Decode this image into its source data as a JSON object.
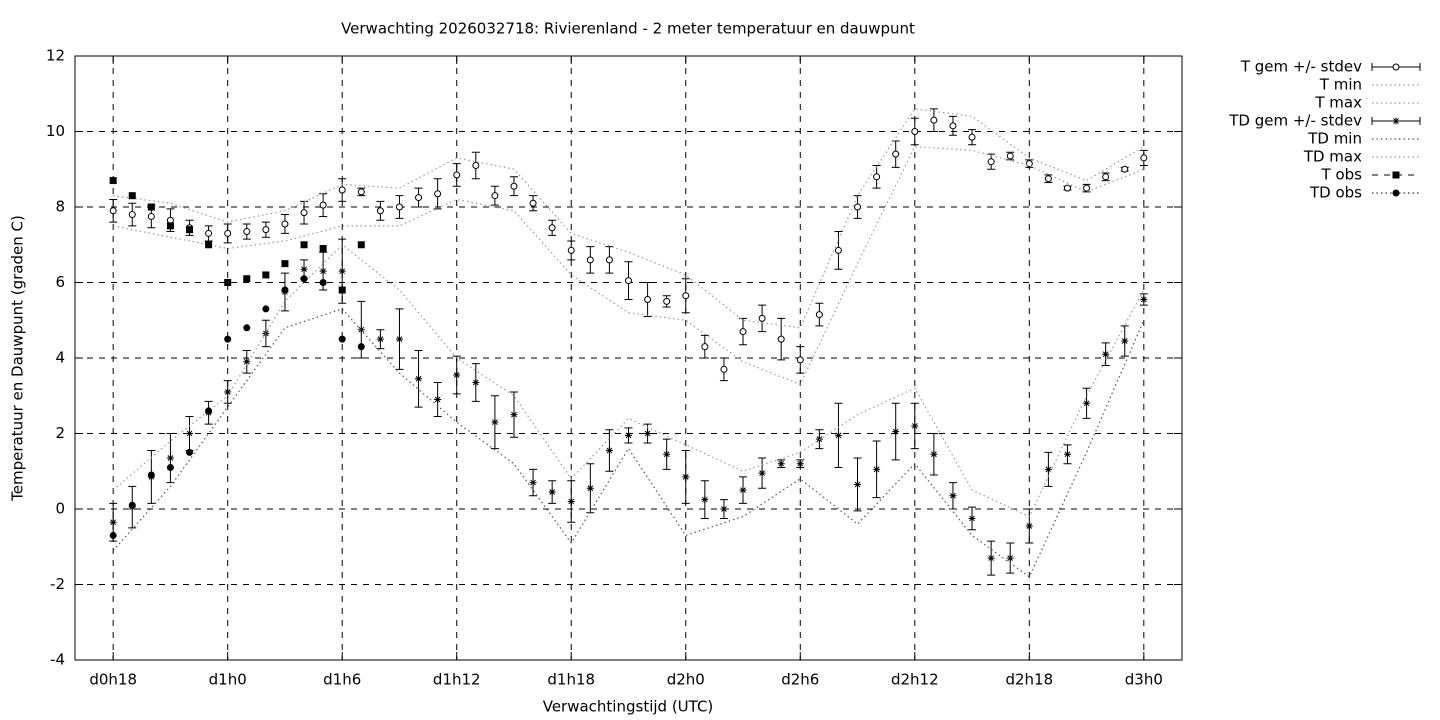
{
  "chart_data": {
    "type": "line",
    "title": "Verwachting 2026032718: Rivierenland - 2 meter temperatuur en dauwpunt",
    "xlabel": "Verwachtingstijd (UTC)",
    "ylabel": "Temperatuur en Dauwpunt (graden C)",
    "xlim": [
      16,
      74
    ],
    "ylim": [
      -4,
      12
    ],
    "xticks": [
      {
        "value": 18,
        "label": "d0h18"
      },
      {
        "value": 24,
        "label": "d1h0"
      },
      {
        "value": 30,
        "label": "d1h6"
      },
      {
        "value": 36,
        "label": "d1h12"
      },
      {
        "value": 42,
        "label": "d1h18"
      },
      {
        "value": 48,
        "label": "d2h0"
      },
      {
        "value": 54,
        "label": "d2h6"
      },
      {
        "value": 60,
        "label": "d2h12"
      },
      {
        "value": 66,
        "label": "d2h18"
      },
      {
        "value": 72,
        "label": "d3h0"
      }
    ],
    "yticks": [
      -4,
      -2,
      0,
      2,
      4,
      6,
      8,
      10,
      12
    ],
    "grid": true,
    "legend": "outside-right",
    "series": [
      {
        "name": "T gem +/- stdev",
        "style": "errorbars",
        "marker": "circle",
        "color": "#000000",
        "x": [
          18,
          19,
          20,
          21,
          22,
          23,
          24,
          25,
          26,
          27,
          28,
          29,
          30,
          31,
          32,
          33,
          34,
          35,
          36,
          37,
          38,
          39,
          40,
          41,
          42,
          43,
          44,
          45,
          46,
          47,
          48,
          49,
          50,
          51,
          52,
          53,
          54,
          55,
          56,
          57,
          58,
          59,
          60,
          61,
          62,
          63,
          64,
          65,
          66,
          67,
          68,
          69,
          70,
          71,
          72
        ],
        "values": [
          7.9,
          7.8,
          7.75,
          7.65,
          7.45,
          7.3,
          7.3,
          7.35,
          7.4,
          7.55,
          7.85,
          8.05,
          8.45,
          8.4,
          7.9,
          8.0,
          8.25,
          8.35,
          8.85,
          9.1,
          8.3,
          8.55,
          8.1,
          7.45,
          6.85,
          6.6,
          6.6,
          6.05,
          5.55,
          5.5,
          5.65,
          4.3,
          3.7,
          4.7,
          5.05,
          4.5,
          3.95,
          5.15,
          6.85,
          8.0,
          8.8,
          9.4,
          10.0,
          10.3,
          10.15,
          9.85,
          9.2,
          9.35,
          9.15,
          8.75,
          8.5,
          8.5,
          8.8,
          9.0,
          9.3
        ],
        "errors": [
          0.3,
          0.3,
          0.3,
          0.3,
          0.2,
          0.2,
          0.25,
          0.2,
          0.2,
          0.25,
          0.3,
          0.3,
          0.3,
          0.1,
          0.25,
          0.3,
          0.25,
          0.4,
          0.3,
          0.35,
          0.25,
          0.25,
          0.2,
          0.2,
          0.25,
          0.35,
          0.35,
          0.5,
          0.45,
          0.15,
          0.45,
          0.3,
          0.3,
          0.35,
          0.35,
          0.55,
          0.35,
          0.3,
          0.5,
          0.3,
          0.3,
          0.35,
          0.35,
          0.3,
          0.25,
          0.2,
          0.2,
          0.1,
          0.1,
          0.1,
          0.05,
          0.1,
          0.1,
          0.05,
          0.2
        ]
      },
      {
        "name": "T min",
        "style": "dotted",
        "color": "#999999",
        "x": [
          18,
          21,
          24,
          27,
          30,
          33,
          36,
          39,
          42,
          45,
          48,
          51,
          54,
          57,
          60,
          63,
          66,
          69,
          72
        ],
        "values": [
          7.5,
          7.2,
          6.9,
          7.1,
          7.5,
          7.5,
          8.2,
          7.9,
          6.2,
          5.2,
          5.0,
          3.9,
          3.3,
          6.5,
          9.6,
          9.5,
          9.1,
          8.4,
          9.0
        ]
      },
      {
        "name": "T max",
        "style": "dotted",
        "color": "#999999",
        "x": [
          18,
          21,
          24,
          27,
          30,
          33,
          36,
          39,
          42,
          45,
          48,
          51,
          54,
          57,
          60,
          63,
          66,
          69,
          72
        ],
        "values": [
          8.3,
          8.1,
          7.6,
          7.9,
          8.6,
          8.5,
          9.3,
          9.0,
          7.3,
          6.8,
          6.2,
          5.0,
          4.8,
          8.3,
          10.6,
          10.4,
          9.3,
          8.7,
          9.6
        ]
      },
      {
        "name": "TD gem +/- stdev",
        "style": "errorbars",
        "marker": "star",
        "color": "#000000",
        "x": [
          18,
          19,
          20,
          21,
          22,
          23,
          24,
          25,
          26,
          27,
          28,
          29,
          30,
          31,
          32,
          33,
          34,
          35,
          36,
          37,
          38,
          39,
          40,
          41,
          42,
          43,
          44,
          45,
          46,
          47,
          48,
          49,
          50,
          51,
          52,
          53,
          54,
          55,
          56,
          57,
          58,
          59,
          60,
          61,
          62,
          63,
          64,
          65,
          66,
          67,
          68,
          69,
          70,
          71,
          72
        ],
        "values": [
          -0.35,
          0.05,
          0.85,
          1.35,
          2.0,
          2.55,
          3.1,
          3.9,
          4.65,
          5.75,
          6.35,
          6.3,
          6.3,
          4.75,
          4.5,
          4.5,
          3.45,
          2.9,
          3.55,
          3.35,
          2.3,
          2.5,
          0.7,
          0.45,
          0.2,
          0.55,
          1.55,
          1.95,
          2.0,
          1.45,
          0.85,
          0.25,
          0.0,
          0.5,
          0.95,
          1.2,
          1.2,
          1.85,
          1.95,
          0.65,
          1.05,
          2.05,
          2.2,
          1.45,
          0.35,
          -0.25,
          -1.3,
          -1.3,
          -0.45,
          1.05,
          1.45,
          2.8,
          4.1,
          4.45,
          5.55
        ],
        "errors": [
          0.5,
          0.55,
          0.7,
          0.65,
          0.45,
          0.3,
          0.3,
          0.3,
          0.35,
          0.5,
          0.25,
          0.5,
          0.85,
          0.75,
          0.25,
          0.8,
          0.75,
          0.45,
          0.5,
          0.5,
          0.7,
          0.6,
          0.35,
          0.3,
          0.55,
          0.65,
          0.55,
          0.2,
          0.25,
          0.4,
          0.7,
          0.5,
          0.25,
          0.35,
          0.4,
          0.1,
          0.1,
          0.25,
          0.85,
          0.7,
          0.75,
          0.75,
          0.6,
          0.55,
          0.35,
          0.3,
          0.45,
          0.4,
          0.45,
          0.45,
          0.25,
          0.4,
          0.3,
          0.4,
          0.15
        ]
      },
      {
        "name": "TD min",
        "style": "dotted",
        "color": "#555555",
        "x": [
          18,
          21,
          24,
          27,
          30,
          33,
          36,
          39,
          42,
          45,
          48,
          51,
          54,
          57,
          60,
          63,
          66,
          69,
          72
        ],
        "values": [
          -1.1,
          0.6,
          2.7,
          4.8,
          5.3,
          3.6,
          2.3,
          1.2,
          -0.9,
          1.6,
          -0.7,
          -0.2,
          0.8,
          -0.4,
          1.2,
          -0.7,
          -1.8,
          1.5,
          5.0
        ]
      },
      {
        "name": "TD max",
        "style": "dotted",
        "color": "#999999",
        "x": [
          18,
          21,
          24,
          27,
          30,
          33,
          36,
          39,
          42,
          45,
          48,
          51,
          54,
          57,
          60,
          63,
          66,
          69,
          72
        ],
        "values": [
          0.5,
          1.8,
          3.0,
          5.5,
          7.0,
          5.8,
          4.0,
          3.0,
          0.8,
          2.4,
          1.7,
          1.0,
          1.5,
          2.5,
          3.2,
          0.5,
          -0.2,
          3.0,
          5.8
        ]
      },
      {
        "name": "T obs",
        "style": "points",
        "marker": "square",
        "legend_line": "dashed",
        "color": "#000000",
        "x": [
          18,
          19,
          20,
          21,
          22,
          23,
          24,
          25,
          26,
          27,
          28,
          29,
          30,
          31
        ],
        "values": [
          8.7,
          8.3,
          8.0,
          7.5,
          7.4,
          7.0,
          6.0,
          6.1,
          6.2,
          6.5,
          7.0,
          6.9,
          5.8,
          7.0
        ]
      },
      {
        "name": "TD obs",
        "style": "points",
        "marker": "dot",
        "legend_line": "dotted",
        "color": "#000000",
        "x": [
          18,
          19,
          20,
          21,
          22,
          23,
          24,
          25,
          26,
          27,
          28,
          29,
          30,
          31
        ],
        "values": [
          -0.7,
          0.1,
          0.9,
          1.1,
          1.5,
          2.6,
          4.5,
          4.8,
          5.3,
          5.8,
          6.1,
          6.0,
          4.5,
          4.3
        ]
      }
    ]
  }
}
